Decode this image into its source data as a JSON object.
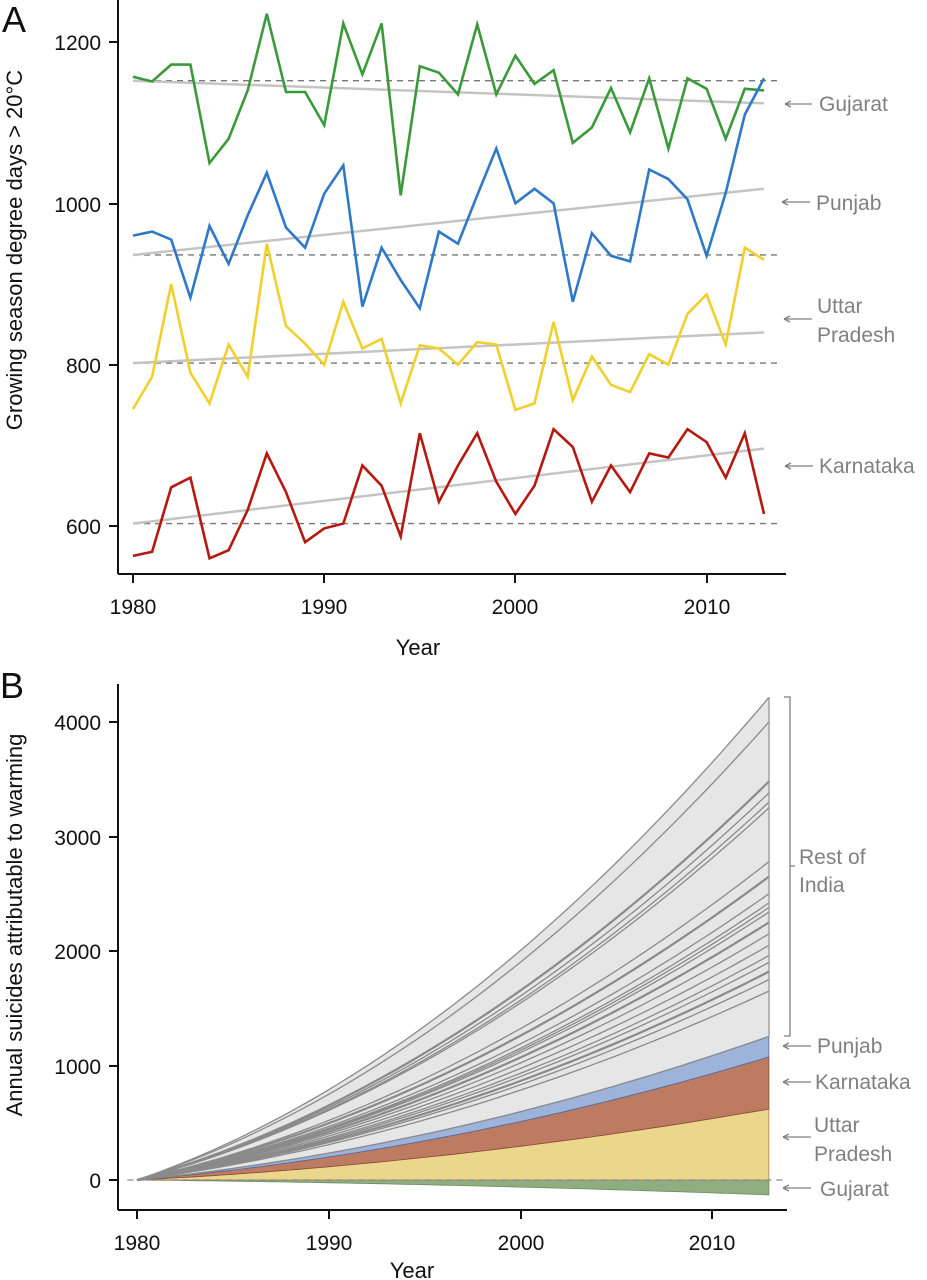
{
  "chart_data": [
    {
      "panel": "A",
      "type": "line",
      "title": "",
      "xlabel": "Year",
      "ylabel": "Growing season degree days > 20°C",
      "xlim": [
        1979.3,
        2013.8
      ],
      "ylim": [
        545,
        1250
      ],
      "xticks": [
        1980,
        1990,
        2000,
        2010
      ],
      "yticks": [
        600,
        800,
        1000,
        1200
      ],
      "grid": false,
      "x": [
        1980,
        1981,
        1982,
        1983,
        1984,
        1985,
        1986,
        1987,
        1988,
        1989,
        1990,
        1991,
        1992,
        1993,
        1994,
        1995,
        1996,
        1997,
        1998,
        1999,
        2000,
        2001,
        2002,
        2003,
        2004,
        2005,
        2006,
        2007,
        2008,
        2009,
        2010,
        2011,
        2012,
        2013
      ],
      "series": [
        {
          "name": "Gujarat",
          "color": "#3a9a3a",
          "values": [
            1157,
            1151,
            1172,
            1172,
            1050,
            1080,
            1140,
            1235,
            1138,
            1138,
            1097,
            1223,
            1160,
            1223,
            1010,
            1170,
            1162,
            1135,
            1222,
            1135,
            1183,
            1148,
            1165,
            1075,
            1094,
            1143,
            1088,
            1155,
            1068,
            1155,
            1142,
            1080,
            1142,
            1140
          ],
          "baseline": 1152,
          "trend": [
            1152,
            1124
          ]
        },
        {
          "name": "Punjab",
          "color": "#2f78c8",
          "values": [
            960,
            965,
            955,
            883,
            972,
            925,
            985,
            1038,
            970,
            945,
            1012,
            1047,
            872,
            945,
            905,
            870,
            965,
            950,
            1010,
            1068,
            1000,
            1018,
            1000,
            878,
            963,
            935,
            928,
            1042,
            1030,
            1005,
            935,
            1013,
            1110,
            1155
          ],
          "baseline": 936,
          "trend": [
            936,
            1018
          ]
        },
        {
          "name": "Uttar Pradesh",
          "color": "#f1cf2d",
          "values": [
            745,
            785,
            900,
            790,
            752,
            825,
            785,
            950,
            848,
            826,
            800,
            878,
            820,
            832,
            752,
            824,
            820,
            800,
            828,
            825,
            744,
            752,
            853,
            756,
            810,
            775,
            766,
            813,
            800,
            863,
            887,
            825,
            945,
            930
          ],
          "baseline": 802,
          "trend": [
            802,
            840
          ]
        },
        {
          "name": "Karnataka",
          "color": "#b5180e",
          "values": [
            563,
            568,
            648,
            660,
            560,
            570,
            620,
            690,
            642,
            580,
            597,
            603,
            675,
            650,
            587,
            715,
            630,
            675,
            715,
            655,
            615,
            650,
            720,
            698,
            630,
            675,
            642,
            690,
            685,
            720,
            704,
            660,
            715,
            615
          ],
          "baseline": 603,
          "trend": [
            603,
            696
          ]
        }
      ],
      "annotations": [
        "Gujarat",
        "Punjab",
        "Uttar Pradesh",
        "Karnataka"
      ]
    },
    {
      "panel": "B",
      "type": "area",
      "title": "",
      "xlabel": "Year",
      "ylabel": "Annual suicides attributable to warming",
      "xlim": [
        1979.3,
        2013.8
      ],
      "ylim": [
        -300,
        4350
      ],
      "xticks": [
        1980,
        1990,
        2000,
        2010
      ],
      "yticks": [
        0,
        1000,
        2000,
        3000,
        4000
      ],
      "grid": false,
      "stacked_series_2013": [
        {
          "name": "Gujarat",
          "color": "#8fae80",
          "value_2013": -130
        },
        {
          "name": "Uttar Pradesh",
          "color": "#ecd68c",
          "value_2013": 620
        },
        {
          "name": "Karnataka",
          "color": "#bd7c62",
          "value_2013": 455
        },
        {
          "name": "Punjab",
          "color": "#9db3da",
          "value_2013": 180
        },
        {
          "name": "Rest of India",
          "color": "#e6e6e6",
          "value_2013": 2960
        }
      ],
      "cumulative_tops_2013": {
        "Gujarat": -130,
        "Uttar Pradesh": 620,
        "Karnataka": 1075,
        "Punjab": 1255,
        "Rest of India": 4215
      },
      "rest_of_india_boundaries_2013": [
        1255,
        1650,
        1750,
        1820,
        1900,
        1960,
        2050,
        2150,
        2250,
        2340,
        2380,
        2420,
        2500,
        2650,
        2780,
        3250,
        3300,
        3380,
        3480,
        4000,
        4215
      ],
      "growth_shape": "convex, from 0 in 1980",
      "annotations": [
        "Rest of India",
        "Punjab",
        "Karnataka",
        "Uttar Pradesh",
        "Gujarat"
      ]
    }
  ],
  "labels": {
    "panel_a": "A",
    "panel_b": "B",
    "a_ylabel": "Growing season degree days > 20°C",
    "a_xlabel": "Year",
    "b_ylabel": "Annual suicides attributable to warming",
    "b_xlabel": "Year",
    "a_yticks": [
      "1200",
      "1000",
      "800",
      "600"
    ],
    "a_xticks": [
      "1980",
      "1990",
      "2000",
      "2010"
    ],
    "b_yticks": [
      "4000",
      "3000",
      "2000",
      "1000",
      "0"
    ],
    "b_xticks": [
      "1980",
      "1990",
      "2000",
      "2010"
    ],
    "a_annot_gujarat": "Gujarat",
    "a_annot_punjab": "Punjab",
    "a_annot_up1": "Uttar",
    "a_annot_up2": "Pradesh",
    "a_annot_karnataka": "Karnataka",
    "b_annot_rest1": "Rest of",
    "b_annot_rest2": "India",
    "b_annot_punjab": "Punjab",
    "b_annot_karnataka": "Karnataka",
    "b_annot_up1": "Uttar",
    "b_annot_up2": "Pradesh",
    "b_annot_gujarat": "Gujarat"
  }
}
